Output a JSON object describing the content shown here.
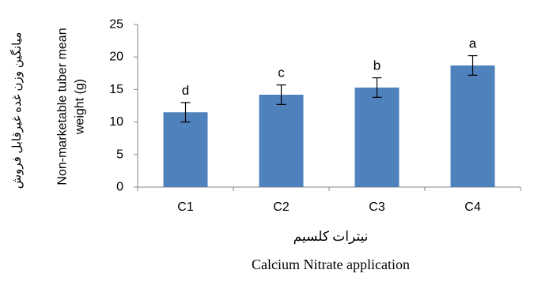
{
  "chart_data": {
    "type": "bar",
    "categories": [
      "C1",
      "C2",
      "C3",
      "C4"
    ],
    "values": [
      11.5,
      14.2,
      15.3,
      18.7
    ],
    "errors": [
      1.5,
      1.5,
      1.5,
      1.5
    ],
    "significance_letters": [
      "d",
      "c",
      "b",
      "a"
    ],
    "ylim": [
      0,
      25
    ],
    "yticks": [
      0,
      5,
      10,
      15,
      20,
      25
    ],
    "ylabel_persian": "میانگین وزن غده غیرقابل فروش",
    "ylabel_line1": "Non-marketable tuber mean",
    "ylabel_line2": "weight (g)",
    "xlabel_persian": "نیترات کلسیم",
    "xlabel": "Calcium Nitrate application",
    "grid": false,
    "legend": "none",
    "bar_color": "#4F81BD"
  }
}
